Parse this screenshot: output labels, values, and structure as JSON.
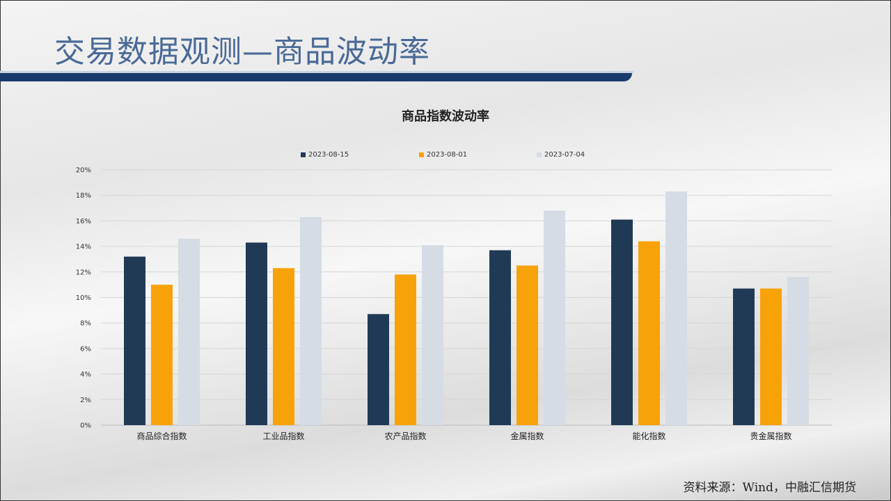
{
  "slide": {
    "title": "交易数据观测—商品波动率",
    "source": "资料来源：Wind，中融汇信期货"
  },
  "colors": {
    "title": "#4a6a96",
    "band": "#1b3a6c"
  },
  "chart_data": {
    "type": "bar",
    "title": "商品指数波动率",
    "categories": [
      "商品综合指数",
      "工业品指数",
      "农产品指数",
      "金属指数",
      "能化指数",
      "贵金属指数"
    ],
    "series": [
      {
        "name": "2023-08-15",
        "color": "#203a56",
        "values": [
          13.2,
          14.3,
          8.7,
          13.7,
          16.1,
          10.7
        ]
      },
      {
        "name": "2023-08-01",
        "color": "#f8a20a",
        "values": [
          11.0,
          12.3,
          11.8,
          12.5,
          14.4,
          10.7
        ]
      },
      {
        "name": "2023-07-04",
        "color": "#d5dce4",
        "values": [
          14.6,
          16.3,
          14.1,
          16.8,
          18.3,
          11.6
        ]
      }
    ],
    "ylim": [
      0,
      20
    ],
    "yticks": [
      "0%",
      "2%",
      "4%",
      "6%",
      "8%",
      "10%",
      "12%",
      "14%",
      "16%",
      "18%",
      "20%"
    ],
    "unit": "%",
    "grid": true,
    "legend": "top"
  }
}
